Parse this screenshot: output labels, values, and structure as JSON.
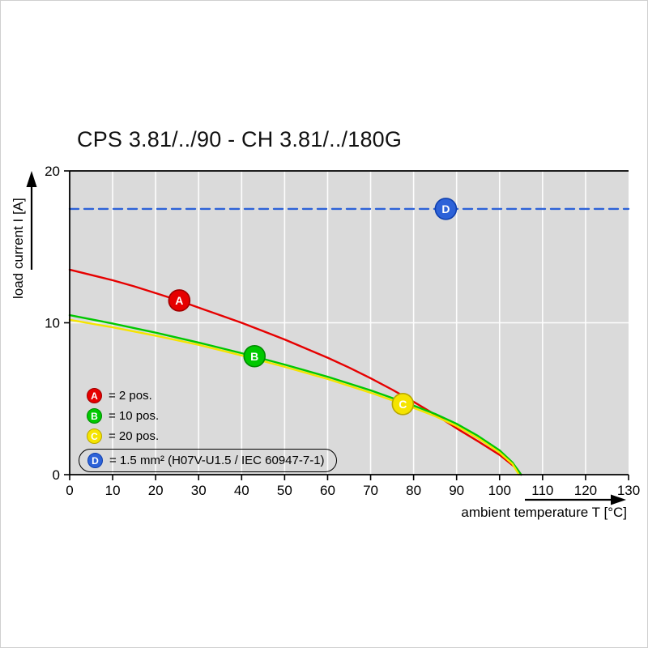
{
  "title": "CPS 3.81/../90 - CH 3.81/../180G",
  "axes": {
    "y_label": "load current I [A]",
    "x_label": "ambient temperature T [°C]"
  },
  "colors": {
    "plot_bg": "#dadada",
    "grid": "#fdfdfd",
    "axis": "#000000",
    "red": "#e60000",
    "green": "#00c800",
    "yellow": "#f5e400",
    "blue": "#2d62d8"
  },
  "chart_data": {
    "type": "line",
    "title": "CPS 3.81/../90 - CH 3.81/../180G",
    "xlabel": "ambient temperature T [°C]",
    "ylabel": "load current I [A]",
    "xlim": [
      0,
      130
    ],
    "ylim": [
      0,
      20
    ],
    "x_ticks": [
      0,
      10,
      20,
      30,
      40,
      50,
      60,
      70,
      80,
      90,
      100,
      110,
      120,
      130
    ],
    "y_ticks": [
      0,
      10,
      20
    ],
    "grid": "vertical-and-horizontal",
    "legend_position": "lower-left-inside",
    "series": [
      {
        "name": "A",
        "label": "2 pos.",
        "color": "#e60000",
        "edge": "#a00000",
        "dashed": false,
        "marker": {
          "t": 25.5,
          "i": 11.47
        },
        "points": [
          [
            0,
            13.5
          ],
          [
            5,
            13.15
          ],
          [
            10,
            12.8
          ],
          [
            15,
            12.4
          ],
          [
            20,
            11.95
          ],
          [
            25,
            11.5
          ],
          [
            30,
            11.0
          ],
          [
            35,
            10.5
          ],
          [
            40,
            10.0
          ],
          [
            45,
            9.45
          ],
          [
            50,
            8.9
          ],
          [
            55,
            8.3
          ],
          [
            60,
            7.7
          ],
          [
            65,
            7.05
          ],
          [
            70,
            6.35
          ],
          [
            75,
            5.6
          ],
          [
            80,
            4.8
          ],
          [
            85,
            3.95
          ],
          [
            90,
            3.05
          ],
          [
            95,
            2.2
          ],
          [
            100,
            1.3
          ],
          [
            102,
            0.85
          ],
          [
            104,
            0.4
          ],
          [
            105,
            0
          ]
        ]
      },
      {
        "name": "B",
        "label": "10 pos.",
        "color": "#00c800",
        "edge": "#008a00",
        "dashed": false,
        "marker": {
          "t": 43,
          "i": 7.8
        },
        "points": [
          [
            0,
            10.5
          ],
          [
            10,
            9.95
          ],
          [
            20,
            9.35
          ],
          [
            30,
            8.7
          ],
          [
            40,
            8.0
          ],
          [
            50,
            7.25
          ],
          [
            60,
            6.45
          ],
          [
            70,
            5.55
          ],
          [
            80,
            4.55
          ],
          [
            85,
            4.0
          ],
          [
            90,
            3.35
          ],
          [
            95,
            2.55
          ],
          [
            100,
            1.6
          ],
          [
            103,
            0.8
          ],
          [
            105,
            0
          ]
        ]
      },
      {
        "name": "C",
        "label": "20 pos.",
        "color": "#f5e400",
        "edge": "#b8a800",
        "dashed": false,
        "marker": {
          "t": 77.5,
          "i": 4.65
        },
        "points": [
          [
            0,
            10.2
          ],
          [
            10,
            9.7
          ],
          [
            20,
            9.15
          ],
          [
            30,
            8.55
          ],
          [
            40,
            7.85
          ],
          [
            50,
            7.1
          ],
          [
            60,
            6.3
          ],
          [
            70,
            5.4
          ],
          [
            80,
            4.4
          ],
          [
            85,
            3.85
          ],
          [
            90,
            3.2
          ],
          [
            95,
            2.4
          ],
          [
            100,
            1.45
          ],
          [
            103,
            0.7
          ],
          [
            104.5,
            0
          ]
        ]
      },
      {
        "name": "D",
        "label": "1.5 mm² (H07V-U1.5 / IEC 60947-7-1)",
        "color": "#2d62d8",
        "edge": "#0f3fae",
        "dashed": true,
        "marker": {
          "t": 87.5,
          "i": 17.5
        },
        "points": [
          [
            0,
            17.5
          ],
          [
            130,
            17.5
          ]
        ]
      }
    ]
  },
  "legend": {
    "items": [
      {
        "letter": "A",
        "text": "= 2 pos.",
        "color": "#e60000",
        "edge": "#a00000",
        "boxed": false
      },
      {
        "letter": "B",
        "text": "= 10 pos.",
        "color": "#00c800",
        "edge": "#008a00",
        "boxed": false
      },
      {
        "letter": "C",
        "text": "= 20 pos.",
        "color": "#f5e400",
        "edge": "#b8a800",
        "boxed": false
      },
      {
        "letter": "D",
        "text": "= 1.5 mm² (H07V-U1.5 / IEC 60947-7-1)",
        "color": "#2d62d8",
        "edge": "#0f3fae",
        "boxed": true
      }
    ]
  }
}
